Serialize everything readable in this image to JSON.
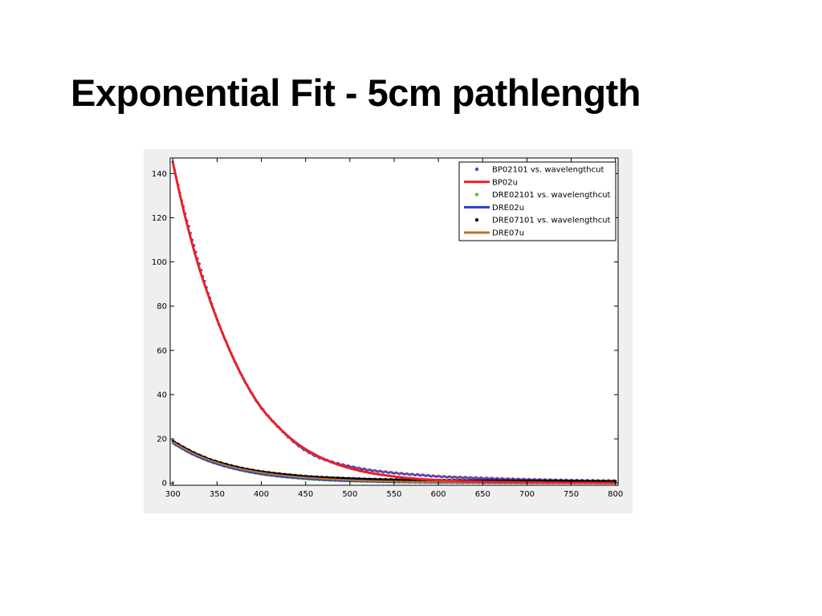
{
  "slide": {
    "title": "Exponential Fit - 5cm pathlength"
  },
  "chart_data": {
    "type": "scatter",
    "title": "",
    "xlabel": "",
    "ylabel": "",
    "xlim": [
      297,
      803
    ],
    "ylim": [
      -1,
      147
    ],
    "x_ticks": [
      300,
      350,
      400,
      450,
      500,
      550,
      600,
      650,
      700,
      750,
      800
    ],
    "y_ticks": [
      0,
      20,
      40,
      60,
      80,
      100,
      120,
      140
    ],
    "grid": false,
    "legend_position": "top-right",
    "series": [
      {
        "name": "BP02101 vs. wavelengthcut",
        "kind": "points",
        "color": "#6a3fa8",
        "x": [
          300,
          310,
          320,
          330,
          340,
          350,
          360,
          370,
          380,
          390,
          400,
          420,
          440,
          460,
          480,
          500,
          520,
          540,
          560,
          580,
          600,
          650,
          700,
          750,
          800
        ],
        "y": [
          145,
          128,
          113,
          99,
          86,
          74,
          64,
          55,
          47,
          40,
          34,
          25,
          17.5,
          12.5,
          9.5,
          7.5,
          6,
          5,
          4.2,
          3.6,
          3,
          2.2,
          1.6,
          1.2,
          0.9
        ]
      },
      {
        "name": "BP02u",
        "kind": "line",
        "color": "#e8202a",
        "x": [
          300,
          310,
          320,
          330,
          340,
          350,
          360,
          370,
          380,
          390,
          400,
          420,
          440,
          460,
          480,
          500,
          520,
          540,
          560,
          580,
          600,
          650,
          700,
          750,
          800
        ],
        "y": [
          145,
          127,
          111,
          97,
          85,
          74,
          64,
          55,
          47,
          40,
          34,
          25,
          18,
          13,
          9.3,
          6.7,
          4.8,
          3.5,
          2.5,
          1.8,
          1.3,
          0.6,
          0.3,
          0.1,
          0.05
        ]
      },
      {
        "name": "DRE02101 vs. wavelengthcut",
        "kind": "points",
        "color": "#5cb85c",
        "x": [
          300,
          320,
          340,
          360,
          380,
          400,
          420,
          440,
          460,
          480,
          500,
          520,
          540,
          560,
          580,
          600,
          650,
          700,
          750,
          800
        ],
        "y": [
          18,
          13.5,
          10,
          7.5,
          5.5,
          4,
          3,
          2.2,
          1.6,
          1.2,
          0.9,
          0.7,
          0.5,
          0.4,
          0.3,
          0.25,
          0.15,
          0.1,
          0.08,
          0.05
        ]
      },
      {
        "name": "DRE02u",
        "kind": "line",
        "color": "#2a3fcf",
        "x": [
          300,
          320,
          340,
          360,
          380,
          400,
          420,
          440,
          460,
          480,
          500,
          520,
          540,
          560,
          580,
          600,
          650,
          700,
          750,
          800
        ],
        "y": [
          18,
          13.4,
          10,
          7.4,
          5.5,
          4.1,
          3,
          2.3,
          1.7,
          1.2,
          0.9,
          0.7,
          0.5,
          0.4,
          0.3,
          0.2,
          0.1,
          0.05,
          0.03,
          0.02
        ]
      },
      {
        "name": "DRE07101 vs. wavelengthcut",
        "kind": "points",
        "color": "#000000",
        "x": [
          300,
          320,
          340,
          360,
          380,
          400,
          420,
          440,
          460,
          480,
          500,
          520,
          540,
          560,
          580,
          600,
          650,
          700,
          750,
          800
        ],
        "y": [
          19,
          14.5,
          11,
          8.5,
          6.6,
          5.2,
          4.2,
          3.4,
          2.8,
          2.4,
          2.1,
          1.8,
          1.6,
          1.5,
          1.4,
          1.3,
          1.1,
          1,
          0.9,
          0.8
        ]
      },
      {
        "name": "DRE07u",
        "kind": "line",
        "color": "#b8732e",
        "x": [
          300,
          320,
          340,
          360,
          380,
          400,
          420,
          440,
          460,
          480,
          500,
          520,
          540,
          560,
          580,
          600,
          650,
          700,
          750,
          800
        ],
        "y": [
          18.5,
          14,
          10.6,
          8,
          6.1,
          4.7,
          3.6,
          2.8,
          2.2,
          1.7,
          1.3,
          1,
          0.8,
          0.6,
          0.5,
          0.4,
          0.3,
          0.2,
          0.15,
          0.1
        ]
      }
    ]
  }
}
